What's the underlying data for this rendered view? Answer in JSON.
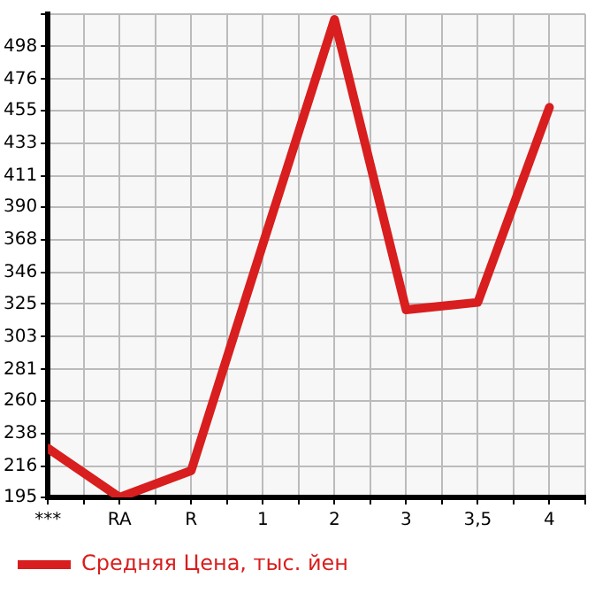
{
  "chart_data": {
    "type": "line",
    "categories": [
      "***",
      "RA",
      "R",
      "1",
      "2",
      "3",
      "3,5",
      "4"
    ],
    "series": [
      {
        "name": "Средняя Цена, тыс. йен",
        "color": "#d81e1e",
        "values": [
          228,
          195,
          213,
          365,
          516,
          321,
          326,
          457
        ]
      }
    ],
    "ylim": [
      195,
      519.6
    ],
    "yticks": [
      195,
      216,
      238,
      260,
      281,
      303,
      325,
      346,
      368,
      390,
      411,
      433,
      455,
      476,
      498,
      {
        "value": 519.6,
        "label": null
      }
    ],
    "grid": true,
    "legend": "bottom left"
  }
}
